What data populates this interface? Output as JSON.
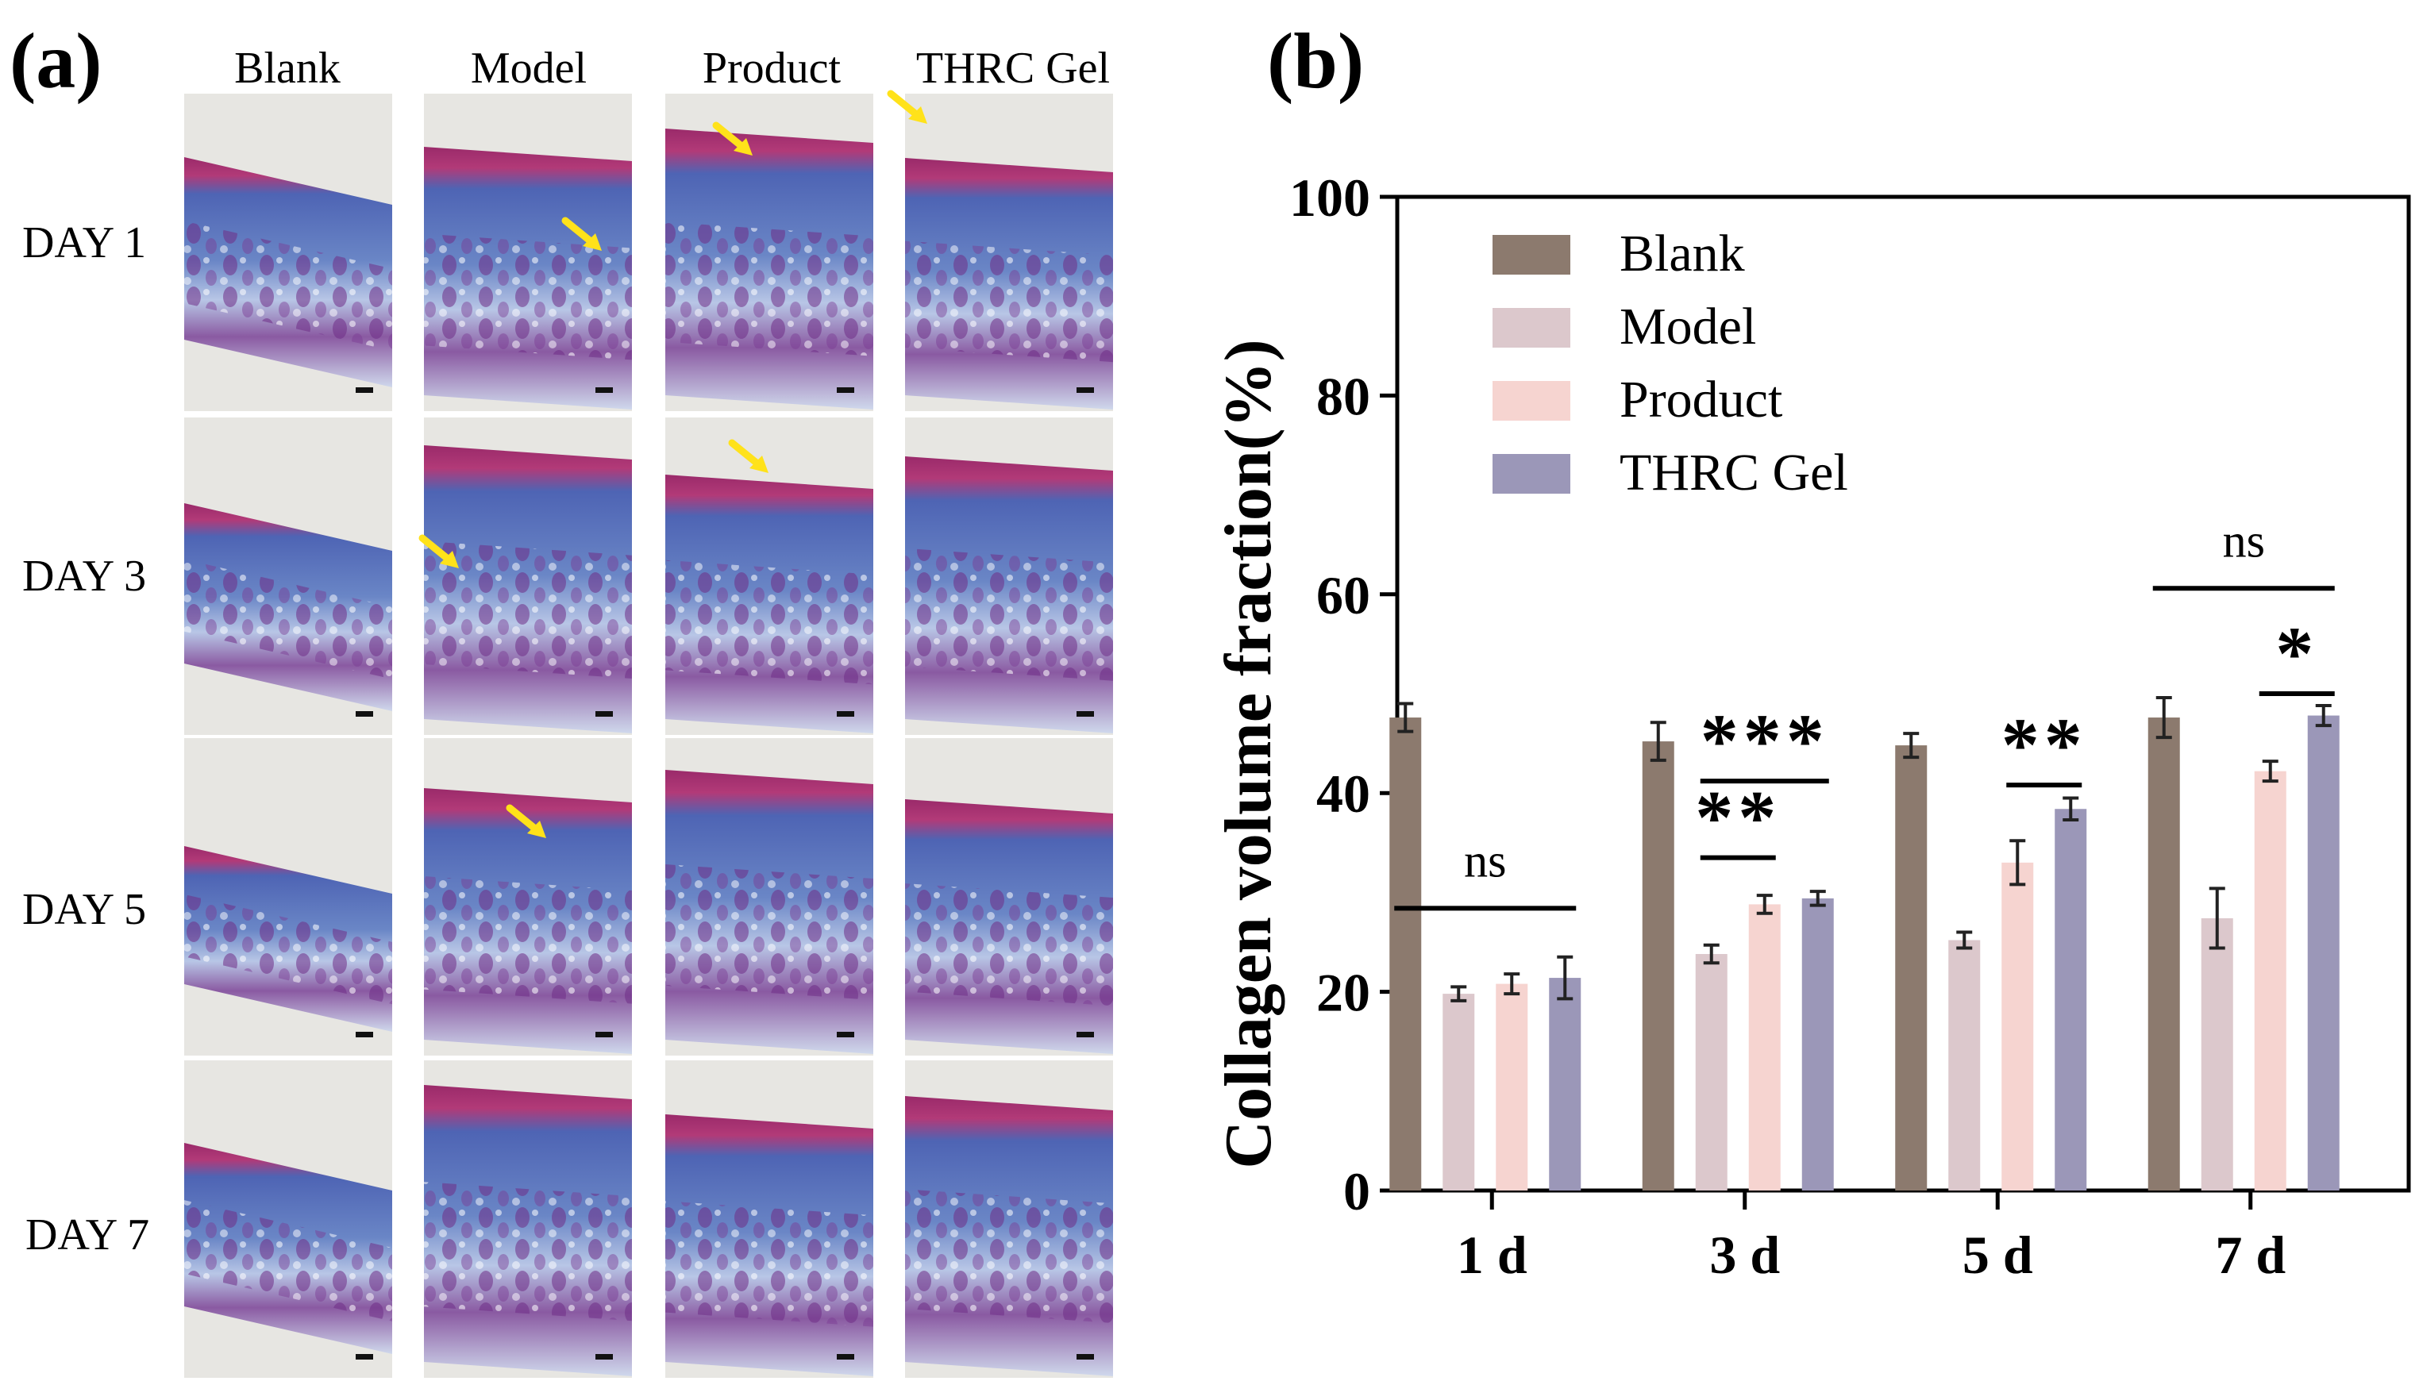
{
  "panel_a": {
    "label": "(a)",
    "columns": [
      "Blank",
      "Model",
      "Product",
      "THRC Gel"
    ],
    "rows": [
      "DAY 1",
      "DAY 3",
      "DAY 5",
      "DAY 7"
    ]
  },
  "panel_b": {
    "label": "(b)"
  },
  "chart_data": {
    "type": "bar",
    "title": "",
    "xlabel": "",
    "ylabel": "Collagen volume fraction(%)",
    "ylim": [
      0,
      100
    ],
    "yticks": [
      0,
      20,
      40,
      60,
      80,
      100
    ],
    "categories": [
      "1 d",
      "3 d",
      "5 d",
      "7 d"
    ],
    "legend_position": "top-left",
    "series": [
      {
        "name": "Blank",
        "color": "#8c7a6e",
        "values": [
          47.6,
          45.2,
          44.8,
          47.6
        ],
        "errors": [
          1.4,
          1.9,
          1.2,
          2.0
        ]
      },
      {
        "name": "Model",
        "color": "#dcc8cc",
        "values": [
          19.8,
          23.8,
          25.2,
          27.4
        ],
        "errors": [
          0.7,
          0.9,
          0.8,
          3.0
        ]
      },
      {
        "name": "Product",
        "color": "#f6d4d0",
        "values": [
          20.8,
          28.8,
          33.0,
          42.2
        ],
        "errors": [
          1.0,
          0.9,
          2.2,
          1.0
        ]
      },
      {
        "name": "THRC Gel",
        "color": "#9b97b8",
        "values": [
          21.4,
          29.4,
          38.4,
          47.8
        ],
        "errors": [
          2.1,
          0.7,
          1.1,
          1.0
        ]
      }
    ],
    "annotations": [
      {
        "text": "ns",
        "category": 0,
        "from": 0,
        "to": 3,
        "y": 28.4
      },
      {
        "text": "***",
        "category": 1,
        "from": 1,
        "to": 3,
        "y": 41.2
      },
      {
        "text": "**",
        "category": 1,
        "from": 1,
        "to": 2,
        "y": 33.5
      },
      {
        "text": "**",
        "category": 2,
        "from": 2,
        "to": 3,
        "y": 40.8
      },
      {
        "text": "ns",
        "category": 3,
        "from": 0,
        "to": 3,
        "y": 60.6
      },
      {
        "text": "*",
        "category": 3,
        "from": 2,
        "to": 3,
        "y": 50.0
      }
    ]
  }
}
